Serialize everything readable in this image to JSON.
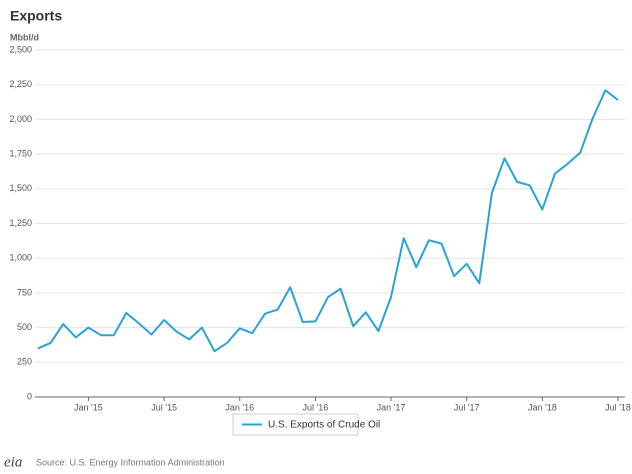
{
  "chart_data": {
    "type": "line",
    "title": "Exports",
    "y_label": "Mbbl/d",
    "categories": [
      null,
      null,
      null,
      null,
      "Jan '15",
      null,
      null,
      null,
      null,
      null,
      "Jul '15",
      null,
      null,
      null,
      null,
      null,
      "Jan '16",
      null,
      null,
      null,
      null,
      null,
      "Jul '16",
      null,
      null,
      null,
      null,
      null,
      "Jan '17",
      null,
      null,
      null,
      null,
      null,
      "Jul '17",
      null,
      null,
      null,
      null,
      null,
      "Jan '18",
      null,
      null,
      null,
      null,
      null,
      "Jul '18"
    ],
    "series": [
      {
        "name": "U.S. Exports of Crude Oil",
        "color": "#29a3d6",
        "values": [
          350,
          390,
          525,
          430,
          500,
          445,
          445,
          605,
          530,
          450,
          555,
          470,
          415,
          500,
          330,
          390,
          495,
          460,
          600,
          630,
          790,
          540,
          545,
          720,
          780,
          510,
          610,
          475,
          720,
          1145,
          935,
          1130,
          1105,
          870,
          960,
          820,
          1470,
          1720,
          1550,
          1525,
          1350,
          1610,
          1680,
          1760,
          2010,
          2210,
          2140
        ]
      }
    ],
    "ylim": [
      0,
      2500
    ],
    "yticks": [
      0,
      250,
      500,
      750,
      {
        "value": 1000,
        "label": "1,000"
      },
      {
        "value": 1250,
        "label": "1,250"
      },
      {
        "value": 1500,
        "label": "1,500"
      },
      {
        "value": 1750,
        "label": "1,750"
      },
      {
        "value": 2000,
        "label": "2,000"
      },
      {
        "value": 2250,
        "label": "2,250"
      },
      {
        "value": 2500,
        "label": "2,500"
      }
    ],
    "grid": true,
    "legend": "bottom",
    "source": "Source: U.S. Energy Information Administration",
    "logo": "eia"
  }
}
